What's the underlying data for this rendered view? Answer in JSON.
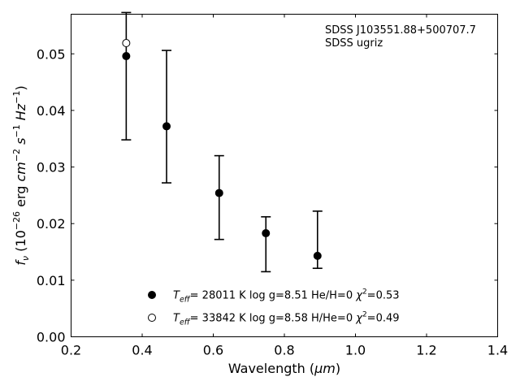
{
  "chart_data": {
    "type": "scatter",
    "xlabel_prefix": "Wavelength (",
    "xlabel_unit": "μm",
    "xlabel_suffix": ")",
    "ylabel": "f_ν (10^-26 erg cm^-2 s^-1 Hz^-1)",
    "xlim": [
      0.2,
      1.4
    ],
    "ylim": [
      0.0,
      0.057
    ],
    "xticks": [
      0.2,
      0.4,
      0.6,
      0.8,
      1.0,
      1.2,
      1.4
    ],
    "xtick_labels": [
      "0.2",
      "0.4",
      "0.6",
      "0.8",
      "1.0",
      "1.2",
      "1.4"
    ],
    "yticks": [
      0.0,
      0.01,
      0.02,
      0.03,
      0.04,
      0.05
    ],
    "ytick_labels": [
      "0.00",
      "0.01",
      "0.02",
      "0.03",
      "0.04",
      "0.05"
    ],
    "grid": false,
    "annotation": [
      "SDSS J103551.88+500707.7",
      "SDSS ugriz"
    ],
    "observed": {
      "x": [
        0.3551,
        0.4686,
        0.6166,
        0.748,
        0.8932
      ],
      "y": [
        0.0496,
        0.0372,
        0.0254,
        0.0183,
        0.0143
      ],
      "yerr_low": [
        0.0348,
        0.0272,
        0.0172,
        0.0115,
        0.0121
      ],
      "yerr_high": [
        0.0573,
        0.0506,
        0.032,
        0.0212,
        0.0222
      ]
    },
    "series": [
      {
        "name": "Teff= 28011 K  log g=8.51  He/H=0  χ²=0.53",
        "marker": "filled",
        "x": [
          0.3551,
          0.4686,
          0.6166,
          0.748,
          0.8932
        ],
        "y": [
          0.0496,
          0.0372,
          0.0254,
          0.0183,
          0.0143
        ]
      },
      {
        "name": "Teff= 33842 K  log g=8.58  H/He=0  χ²=0.49",
        "marker": "open",
        "x": [
          0.3551
        ],
        "y": [
          0.0519
        ]
      }
    ],
    "legend_entries": [
      {
        "teff_value": "= 28011 K  log g=8.51  He/H=0  ",
        "chi_value": "=0.53"
      },
      {
        "teff_value": "= 33842 K  log g=8.58  H/He=0  ",
        "chi_value": "=0.49"
      }
    ],
    "legend_location": "bottom-center",
    "colors": {
      "marker": "#000000",
      "axis": "#000000",
      "background": "#ffffff"
    }
  }
}
